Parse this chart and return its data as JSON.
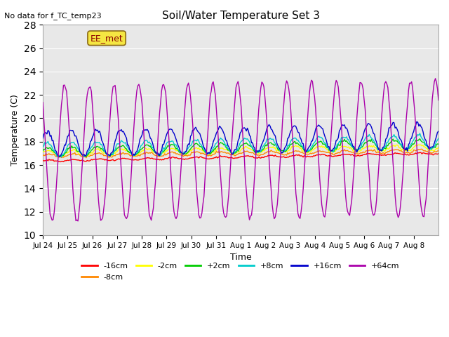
{
  "title": "Soil/Water Temperature Set 3",
  "no_data_label": "No data for f_TC_temp23",
  "annotation_label": "EE_met",
  "xlabel": "Time",
  "ylabel": "Temperature (C)",
  "ylim": [
    10,
    28
  ],
  "yticks": [
    10,
    12,
    14,
    16,
    18,
    20,
    22,
    24,
    26,
    28
  ],
  "bg_color": "#e8e8e8",
  "fig_color": "#ffffff",
  "series": [
    {
      "label": "-16cm",
      "color": "#ff0000"
    },
    {
      "label": "-8cm",
      "color": "#ff8800"
    },
    {
      "label": "-2cm",
      "color": "#ffff00"
    },
    {
      "label": "+2cm",
      "color": "#00cc00"
    },
    {
      "label": "+8cm",
      "color": "#00cccc"
    },
    {
      "label": "+16cm",
      "color": "#0000cc"
    },
    {
      "label": "+64cm",
      "color": "#aa00aa"
    }
  ],
  "n_days": 16,
  "x_tick_labels": [
    "Jul 24",
    "Jul 25",
    "Jul 26",
    "Jul 27",
    "Jul 28",
    "Jul 29",
    "Jul 30",
    "Jul 31",
    "Aug 1",
    "Aug 2",
    "Aug 3",
    "Aug 4",
    "Aug 5",
    "Aug 6",
    "Aug 7",
    "Aug 8"
  ]
}
